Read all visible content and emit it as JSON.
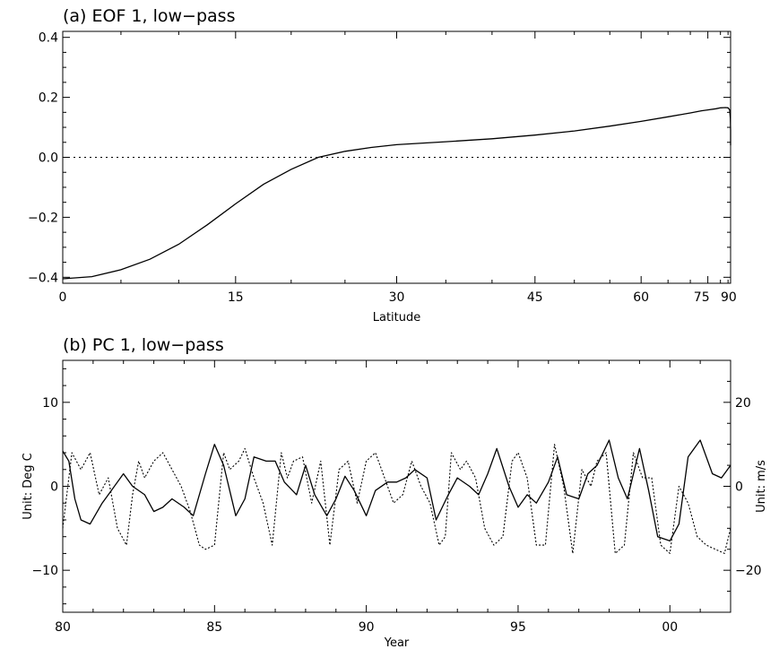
{
  "chart_data": [
    {
      "type": "line",
      "title": "(a) EOF 1, low−pass",
      "xlabel": "Latitude",
      "ylabel": "",
      "x_axis": "sin-latitude",
      "xticks": [
        0,
        15,
        30,
        45,
        60,
        75,
        90
      ],
      "xtick_labels": [
        "0",
        "15",
        "30",
        "45",
        "60",
        "75",
        "90"
      ],
      "xlim": [
        0,
        90
      ],
      "ylim": [
        -0.42,
        0.42
      ],
      "yticks": [
        -0.4,
        -0.2,
        0.0,
        0.2,
        0.4
      ],
      "ytick_labels": [
        "−0.4",
        "−0.2",
        "0.0",
        "0.2",
        "0.4"
      ],
      "grid": false,
      "reference_line": {
        "y": 0.0,
        "style": "dotted"
      },
      "series": [
        {
          "style": "solid",
          "x": [
            0,
            2.5,
            5,
            7.5,
            10,
            12.5,
            15,
            17.5,
            20,
            22.5,
            25,
            27.5,
            30,
            35,
            40,
            45,
            50,
            55,
            60,
            65,
            70,
            73,
            75,
            78,
            80,
            83,
            85,
            87,
            88.5,
            89.5,
            90
          ],
          "y": [
            -0.405,
            -0.398,
            -0.375,
            -0.34,
            -0.29,
            -0.225,
            -0.155,
            -0.09,
            -0.04,
            0.0,
            0.02,
            0.033,
            0.042,
            0.052,
            0.062,
            0.074,
            0.088,
            0.104,
            0.12,
            0.135,
            0.148,
            0.155,
            0.158,
            0.162,
            0.165,
            0.166,
            0.165,
            0.158,
            0.13,
            0.09,
            0.04
          ]
        }
      ]
    },
    {
      "type": "line",
      "title": "(b) PC 1, low−pass",
      "xlabel": "Year",
      "ylabel": "Unit: Deg C",
      "ylabel_right": "Unit: m/s",
      "xlim": [
        1980,
        2002
      ],
      "xticks": [
        1980,
        1985,
        1990,
        1995,
        2000
      ],
      "xtick_labels": [
        "80",
        "85",
        "90",
        "95",
        "00"
      ],
      "ylim": [
        -15,
        15
      ],
      "yticks": [
        -10,
        0,
        10
      ],
      "ytick_labels": [
        "−10",
        "0",
        "10"
      ],
      "ylim_right": [
        -30,
        30
      ],
      "yticks_right": [
        -20,
        0,
        20
      ],
      "ytick_labels_right": [
        "−20",
        "0",
        "20"
      ],
      "grid": false,
      "series": [
        {
          "style": "solid",
          "axis": "left",
          "x": [
            1980,
            1980.2,
            1980.4,
            1980.6,
            1980.9,
            1981.3,
            1981.6,
            1982,
            1982.3,
            1982.7,
            1983,
            1983.3,
            1983.6,
            1984,
            1984.3,
            1984.7,
            1985,
            1985.3,
            1985.7,
            1986,
            1986.3,
            1986.7,
            1987,
            1987.3,
            1987.7,
            1988,
            1988.3,
            1988.7,
            1989,
            1989.3,
            1989.6,
            1990,
            1990.3,
            1990.7,
            1991,
            1991.3,
            1991.6,
            1992,
            1992.3,
            1992.7,
            1993,
            1993.4,
            1993.7,
            1994,
            1994.3,
            1994.7,
            1995,
            1995.3,
            1995.6,
            1996,
            1996.3,
            1996.6,
            1997,
            1997.3,
            1997.6,
            1998,
            1998.3,
            1998.6,
            1999,
            1999.3,
            1999.6,
            2000,
            2000.3,
            2000.6,
            2001,
            2001.4,
            2001.7,
            2002
          ],
          "y": [
            4.2,
            3,
            -1.5,
            -4,
            -4.5,
            -2,
            -0.5,
            1.5,
            0,
            -1,
            -3,
            -2.5,
            -1.5,
            -2.5,
            -3.5,
            1.5,
            5,
            2.5,
            -3.5,
            -1.5,
            3.5,
            3,
            3,
            0.5,
            -1,
            2.5,
            -1,
            -3.5,
            -1.5,
            1.2,
            -0.5,
            -3.5,
            -0.5,
            0.5,
            0.5,
            1,
            2,
            1,
            -4,
            -1,
            1,
            0,
            -1,
            1.5,
            4.5,
            0,
            -2.5,
            -1,
            -2,
            0.5,
            3.5,
            -1,
            -1.5,
            1.5,
            2.5,
            5.5,
            1,
            -1.5,
            4.5,
            -0.5,
            -6,
            -6.5,
            -4.5,
            3.5,
            5.5,
            1.5,
            1,
            2.5
          ]
        },
        {
          "style": "dotted",
          "axis": "right",
          "x": [
            1980,
            1980.3,
            1980.6,
            1980.9,
            1981.2,
            1981.5,
            1981.8,
            1982.1,
            1982.3,
            1982.5,
            1982.7,
            1983,
            1983.3,
            1983.6,
            1983.9,
            1984.2,
            1984.5,
            1984.7,
            1985,
            1985.3,
            1985.5,
            1985.8,
            1986,
            1986.3,
            1986.6,
            1986.9,
            1987.2,
            1987.4,
            1987.6,
            1987.9,
            1988.2,
            1988.5,
            1988.8,
            1989.1,
            1989.4,
            1989.7,
            1990,
            1990.3,
            1990.6,
            1990.9,
            1991.2,
            1991.5,
            1991.8,
            1992.1,
            1992.4,
            1992.6,
            1992.8,
            1993.1,
            1993.3,
            1993.6,
            1993.9,
            1994.2,
            1994.5,
            1994.8,
            1995,
            1995.3,
            1995.6,
            1995.9,
            1996.2,
            1996.5,
            1996.8,
            1997.1,
            1997.4,
            1997.6,
            1997.9,
            1998.2,
            1998.5,
            1998.8,
            1999.1,
            1999.4,
            1999.7,
            2000,
            2000.3,
            2000.6,
            2000.9,
            2001.2,
            2001.5,
            2001.8,
            2002
          ],
          "y": [
            -10,
            8,
            4,
            8,
            -2,
            2,
            -10,
            -14,
            -2,
            6,
            2,
            6,
            8,
            4,
            0,
            -6,
            -14,
            -15,
            -14,
            8,
            4,
            6,
            9,
            2,
            -4,
            -14,
            8,
            2,
            6,
            7,
            -4,
            6,
            -14,
            4,
            6,
            -4,
            6,
            8,
            2,
            -4,
            -2,
            6,
            0,
            -4,
            -14,
            -12,
            8,
            4,
            6,
            2,
            -10,
            -14,
            -12,
            6,
            8,
            2,
            -14,
            -14,
            10,
            0,
            -16,
            4,
            0,
            6,
            8,
            -16,
            -14,
            8,
            2,
            2,
            -14,
            -16,
            0,
            -4,
            -12,
            -14,
            -15,
            -16,
            -10
          ]
        }
      ]
    }
  ]
}
